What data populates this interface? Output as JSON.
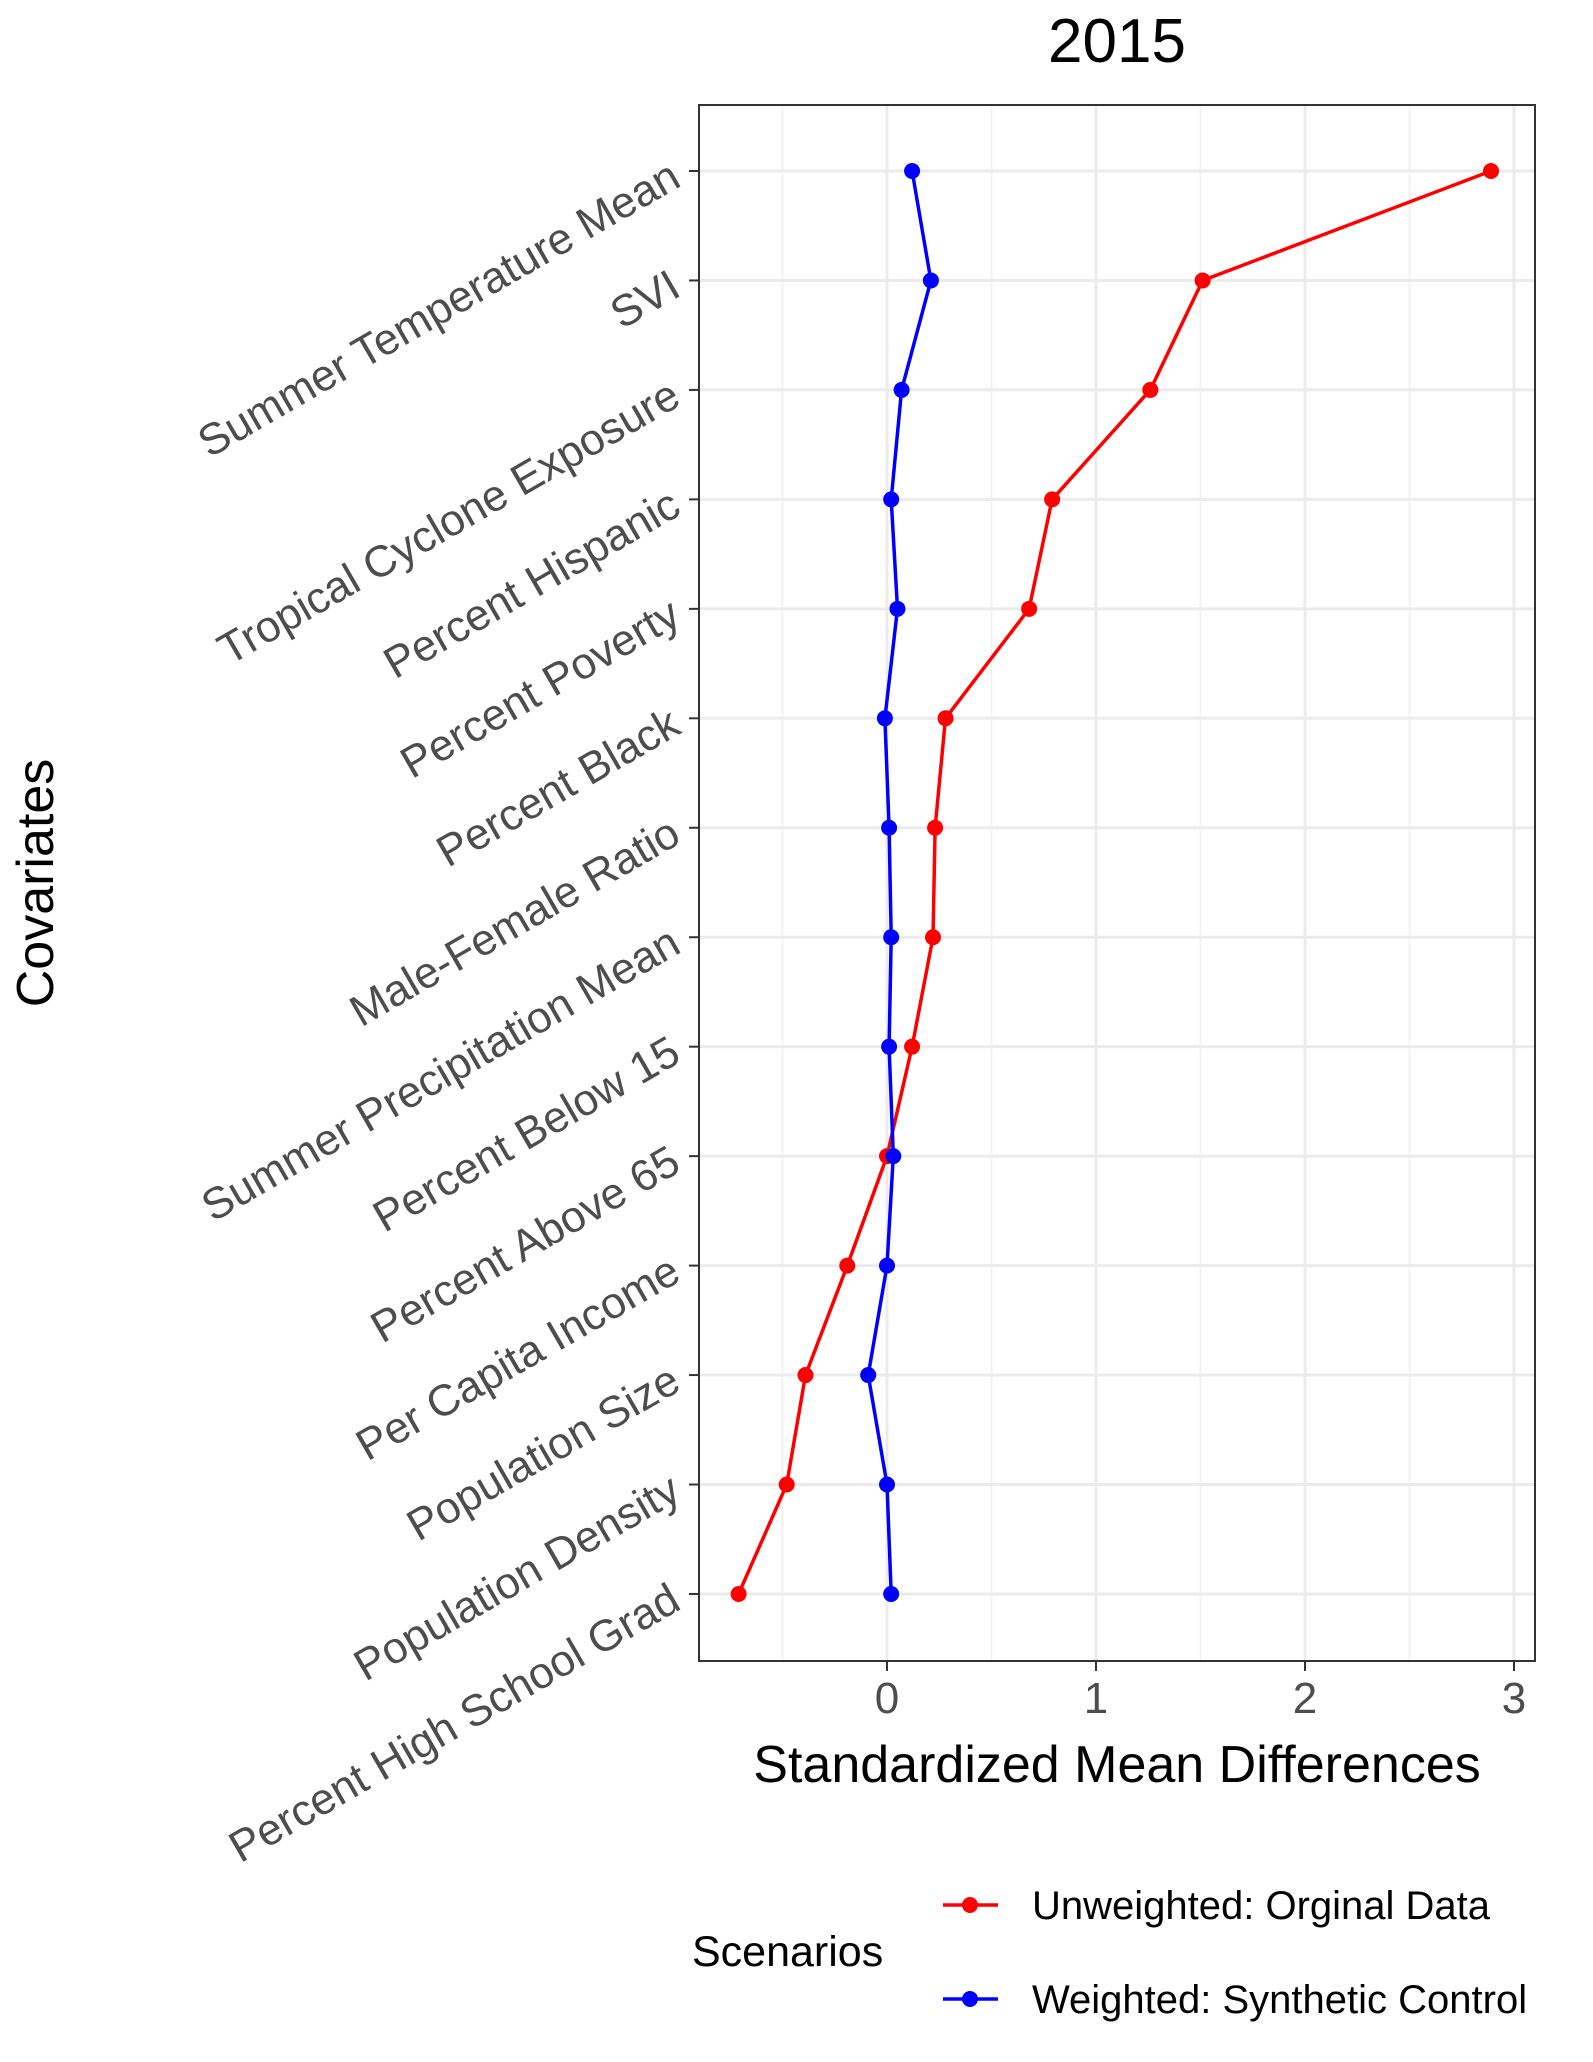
{
  "chart_data": {
    "type": "line",
    "title": "2015",
    "xlabel": "Standardized Mean Differences",
    "ylabel": "Covariates",
    "xlim": [
      -0.9,
      3.1
    ],
    "x_ticks": [
      "0",
      "1",
      "2",
      "3"
    ],
    "grid": true,
    "legend_position": "bottom",
    "legend_title": "Scenarios",
    "categories": [
      "Summer Temperature Mean",
      "SVI",
      "Tropical Cyclone Exposure",
      "Percent Hispanic",
      "Percent Poverty",
      "Percent Black",
      "Male-Female Ratio",
      "Summer Precipitation Mean",
      "Percent Below 15",
      "Percent Above 65",
      "Per Capita Income",
      "Population Size",
      "Population Density",
      "Percent High School Grad"
    ],
    "series": [
      {
        "name": "Unweighted: Orginal Data",
        "color": "#ff0000",
        "values": [
          2.89,
          1.51,
          1.26,
          0.79,
          0.68,
          0.28,
          0.23,
          0.22,
          0.12,
          0.0,
          -0.19,
          -0.39,
          -0.48,
          -0.71
        ]
      },
      {
        "name": "Weighted: Synthetic Control",
        "color": "#0000ff",
        "values": [
          0.12,
          0.21,
          0.07,
          0.02,
          0.05,
          -0.01,
          0.01,
          0.02,
          0.01,
          0.03,
          0.0,
          -0.09,
          0.0,
          0.02
        ]
      }
    ]
  }
}
